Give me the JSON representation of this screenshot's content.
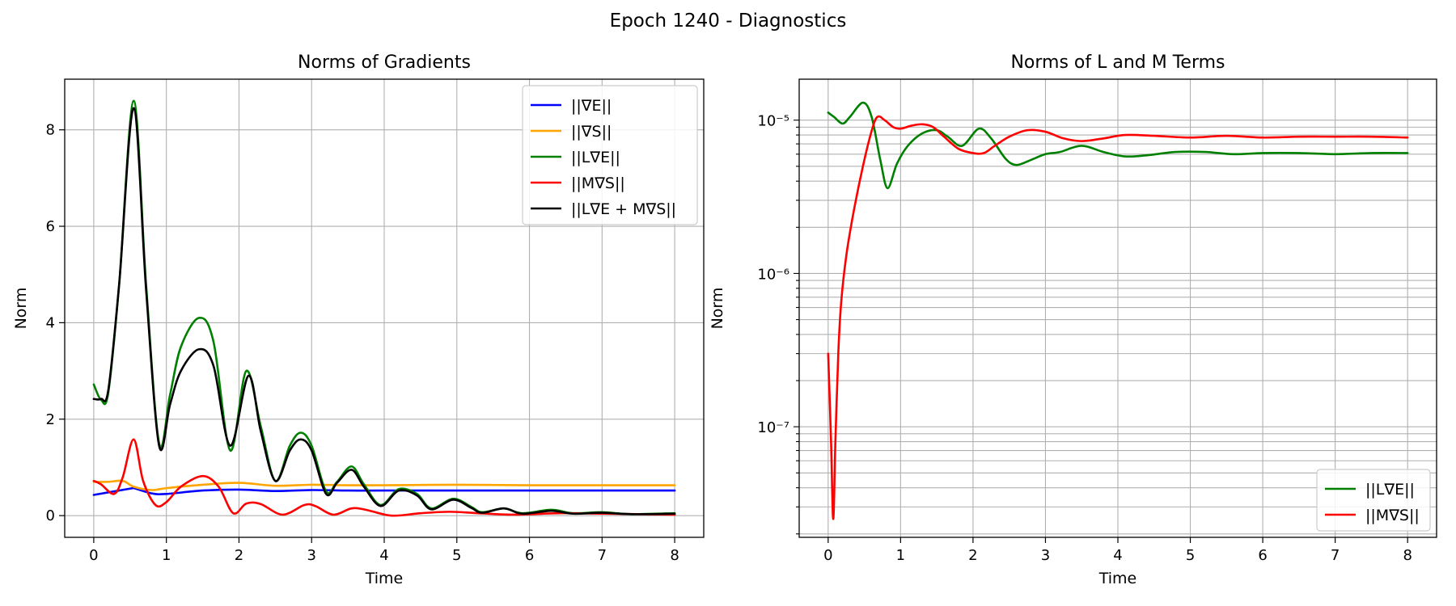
{
  "figure": {
    "suptitle": "Epoch 1240 - Diagnostics"
  },
  "chart_data": [
    {
      "type": "line",
      "title": "Norms of Gradients",
      "xlabel": "Time",
      "ylabel": "Norm",
      "xlim": [
        -0.4,
        8.4
      ],
      "ylim": [
        -0.45,
        9.05
      ],
      "xticks": [
        0,
        1,
        2,
        3,
        4,
        5,
        6,
        7,
        8
      ],
      "yticks": [
        0,
        2,
        4,
        6,
        8
      ],
      "grid": true,
      "legend_position": "upper right",
      "series": [
        {
          "name": "||∇E||",
          "color": "#0000ff",
          "x": [
            0,
            0.5,
            0.55,
            0.8,
            1.0,
            1.5,
            2.0,
            2.5,
            3.0,
            3.5,
            4.0,
            5.0,
            6.0,
            7.0,
            8.0
          ],
          "y": [
            0.43,
            0.56,
            0.57,
            0.46,
            0.45,
            0.52,
            0.54,
            0.51,
            0.53,
            0.52,
            0.52,
            0.52,
            0.52,
            0.52,
            0.52
          ]
        },
        {
          "name": "||∇S||",
          "color": "#ffa500",
          "x": [
            0,
            0.2,
            0.4,
            0.55,
            0.8,
            1.0,
            1.5,
            2.0,
            2.5,
            3.0,
            3.5,
            4.0,
            5.0,
            6.0,
            7.0,
            8.0
          ],
          "y": [
            0.7,
            0.7,
            0.72,
            0.6,
            0.53,
            0.57,
            0.64,
            0.68,
            0.62,
            0.64,
            0.63,
            0.63,
            0.64,
            0.63,
            0.63,
            0.63
          ]
        },
        {
          "name": "||L∇E||",
          "color": "#008000",
          "x": [
            0,
            0.1,
            0.2,
            0.35,
            0.55,
            0.72,
            0.9,
            1.05,
            1.2,
            1.45,
            1.65,
            1.88,
            2.1,
            2.3,
            2.5,
            2.7,
            2.85,
            3.0,
            3.2,
            3.35,
            3.55,
            3.72,
            3.95,
            4.2,
            4.45,
            4.65,
            4.95,
            5.2,
            5.35,
            5.65,
            5.9,
            6.3,
            6.6,
            7.0,
            7.4,
            8.0
          ],
          "y": [
            2.72,
            2.4,
            2.55,
            4.8,
            8.6,
            4.8,
            1.5,
            2.5,
            3.5,
            4.1,
            3.6,
            1.35,
            3.0,
            1.85,
            0.72,
            1.45,
            1.72,
            1.45,
            0.5,
            0.7,
            1.02,
            0.65,
            0.22,
            0.55,
            0.45,
            0.15,
            0.35,
            0.18,
            0.07,
            0.15,
            0.05,
            0.12,
            0.05,
            0.07,
            0.03,
            0.05
          ]
        },
        {
          "name": "||M∇S||",
          "color": "#ff0000",
          "x": [
            0,
            0.1,
            0.28,
            0.4,
            0.55,
            0.68,
            0.85,
            1.0,
            1.2,
            1.5,
            1.72,
            1.92,
            2.1,
            2.3,
            2.6,
            2.9,
            3.05,
            3.3,
            3.55,
            3.75,
            4.1,
            4.5,
            4.9,
            5.3,
            5.8,
            6.4,
            7.0,
            7.5,
            8.0
          ],
          "y": [
            0.72,
            0.65,
            0.45,
            0.8,
            1.58,
            0.72,
            0.22,
            0.28,
            0.6,
            0.82,
            0.6,
            0.05,
            0.25,
            0.24,
            0.02,
            0.22,
            0.2,
            0.02,
            0.15,
            0.12,
            0.0,
            0.05,
            0.08,
            0.05,
            0.02,
            0.05,
            0.04,
            0.03,
            0.02
          ]
        },
        {
          "name": "||L∇E + M∇S||",
          "color": "#000000",
          "x": [
            0,
            0.1,
            0.2,
            0.35,
            0.55,
            0.72,
            0.9,
            1.05,
            1.2,
            1.45,
            1.65,
            1.88,
            2.13,
            2.3,
            2.5,
            2.7,
            2.85,
            3.0,
            3.2,
            3.35,
            3.55,
            3.72,
            3.95,
            4.2,
            4.45,
            4.65,
            4.95,
            5.2,
            5.35,
            5.65,
            5.9,
            6.3,
            6.6,
            7.0,
            7.4,
            8.0
          ],
          "y": [
            2.42,
            2.42,
            2.6,
            4.8,
            8.45,
            4.7,
            1.45,
            2.3,
            3.0,
            3.45,
            3.1,
            1.45,
            2.9,
            1.75,
            0.72,
            1.35,
            1.58,
            1.35,
            0.45,
            0.68,
            0.95,
            0.6,
            0.2,
            0.52,
            0.42,
            0.13,
            0.33,
            0.16,
            0.06,
            0.15,
            0.04,
            0.1,
            0.04,
            0.06,
            0.03,
            0.04
          ]
        }
      ]
    },
    {
      "type": "line",
      "title": "Norms of L and M Terms",
      "xlabel": "Time",
      "ylabel": "Norm",
      "yscale": "log",
      "xlim": [
        -0.4,
        8.4
      ],
      "ylim": [
        1.9e-08,
        1.85e-05
      ],
      "xticks": [
        0,
        1,
        2,
        3,
        4,
        5,
        6,
        7,
        8
      ],
      "yticks": [
        1e-07,
        1e-06,
        1e-05
      ],
      "ytick_labels": [
        "10⁻⁷",
        "10⁻⁶",
        "10⁻⁵"
      ],
      "grid": true,
      "legend_position": "lower right",
      "series": [
        {
          "name": "||L∇E||",
          "color": "#008000",
          "x": [
            0,
            0.08,
            0.2,
            0.3,
            0.48,
            0.6,
            0.72,
            0.82,
            0.95,
            1.1,
            1.3,
            1.5,
            1.65,
            1.85,
            2.08,
            2.25,
            2.45,
            2.6,
            2.8,
            3.0,
            3.2,
            3.5,
            3.8,
            4.1,
            4.4,
            4.8,
            5.2,
            5.6,
            6.0,
            6.5,
            7.0,
            7.5,
            8.0
          ],
          "y": [
            1.12e-05,
            1.05e-05,
            9.5e-06,
            1.05e-05,
            1.3e-05,
            1.05e-05,
            5.5e-06,
            3.6e-06,
            5.2e-06,
            6.8e-06,
            8.2e-06,
            8.6e-06,
            7.8e-06,
            6.8e-06,
            8.8e-06,
            7.6e-06,
            5.6e-06,
            5.1e-06,
            5.5e-06,
            6e-06,
            6.2e-06,
            6.8e-06,
            6.2e-06,
            5.8e-06,
            5.9e-06,
            6.2e-06,
            6.2e-06,
            6e-06,
            6.1e-06,
            6.1e-06,
            6e-06,
            6.1e-06,
            6.1e-06
          ]
        },
        {
          "name": "||M∇S||",
          "color": "#ff0000",
          "x": [
            0,
            0.04,
            0.07,
            0.1,
            0.14,
            0.18,
            0.25,
            0.35,
            0.48,
            0.6,
            0.68,
            0.78,
            0.9,
            1.0,
            1.15,
            1.3,
            1.45,
            1.6,
            1.8,
            2.0,
            2.15,
            2.3,
            2.5,
            2.75,
            3.0,
            3.25,
            3.5,
            3.8,
            4.1,
            4.5,
            5.0,
            5.5,
            6.0,
            6.5,
            7.0,
            7.5,
            8.0
          ],
          "y": [
            3e-07,
            8e-08,
            2.5e-08,
            8e-08,
            3e-07,
            6.5e-07,
            1.3e-06,
            2.5e-06,
            5e-06,
            8.5e-06,
            1.05e-05,
            1e-05,
            9e-06,
            8.8e-06,
            9.2e-06,
            9.4e-06,
            9e-06,
            7.8e-06,
            6.5e-06,
            6.1e-06,
            6.1e-06,
            6.8e-06,
            7.8e-06,
            8.6e-06,
            8.4e-06,
            7.6e-06,
            7.3e-06,
            7.6e-06,
            8e-06,
            7.9e-06,
            7.7e-06,
            7.9e-06,
            7.7e-06,
            7.8e-06,
            7.8e-06,
            7.8e-06,
            7.7e-06
          ]
        }
      ]
    }
  ]
}
